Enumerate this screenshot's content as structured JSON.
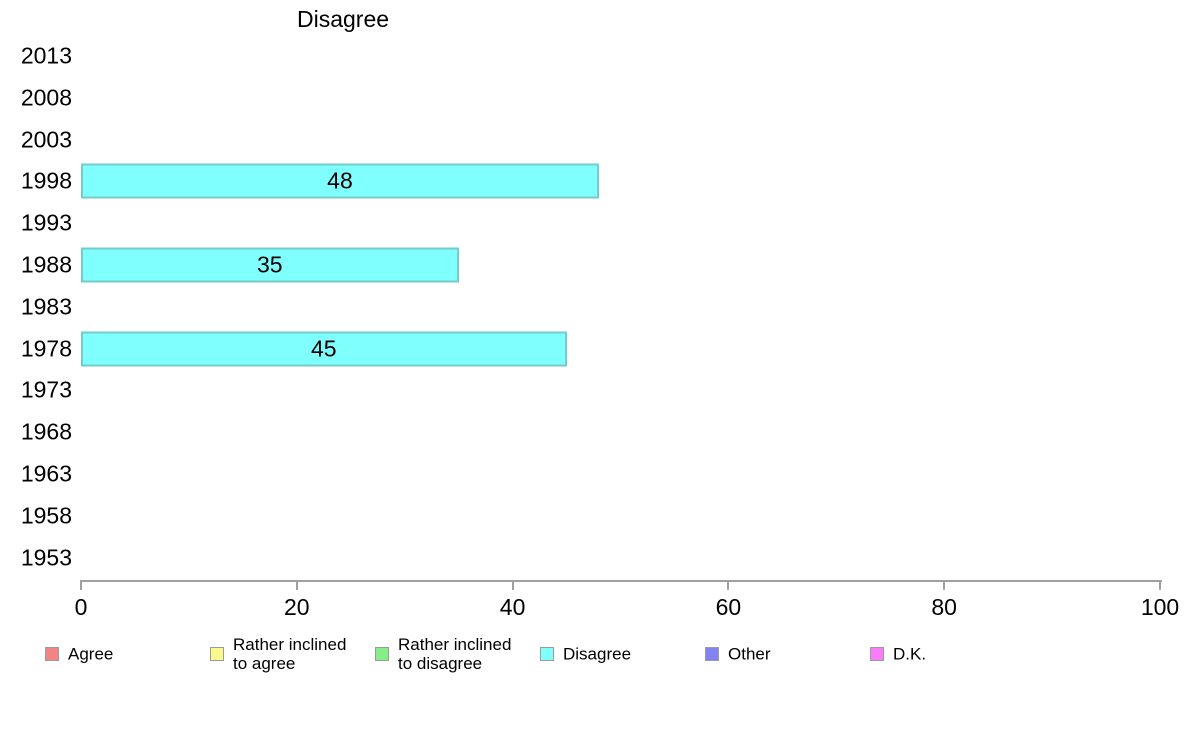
{
  "chart_data": {
    "type": "bar",
    "orientation": "horizontal",
    "title": "Disagree",
    "categories": [
      "2013",
      "2008",
      "2003",
      "1998",
      "1993",
      "1988",
      "1983",
      "1978",
      "1973",
      "1968",
      "1963",
      "1958",
      "1953"
    ],
    "values": [
      null,
      null,
      null,
      48,
      null,
      35,
      null,
      45,
      null,
      null,
      null,
      null,
      null
    ],
    "bar_labels": [
      "",
      "",
      "",
      "48",
      "",
      "35",
      "",
      "45",
      "",
      "",
      "",
      "",
      ""
    ],
    "xlim": [
      0,
      100
    ],
    "x_ticks": [
      "0",
      "20",
      "40",
      "60",
      "80",
      "100"
    ],
    "grid": false,
    "bar_color": "#80ffff",
    "axis_color": "#a0a0a0",
    "legend_position": "bottom",
    "legend": [
      {
        "label": "Agree",
        "color": "#f28484"
      },
      {
        "label": "Rather inclined\nto agree",
        "color": "#f9f98c"
      },
      {
        "label": "Rather inclined\nto disagree",
        "color": "#86ee86"
      },
      {
        "label": "Disagree",
        "color": "#80ffff"
      },
      {
        "label": "Other",
        "color": "#8282f0"
      },
      {
        "label": "D.K.",
        "color": "#f97df9"
      }
    ]
  }
}
